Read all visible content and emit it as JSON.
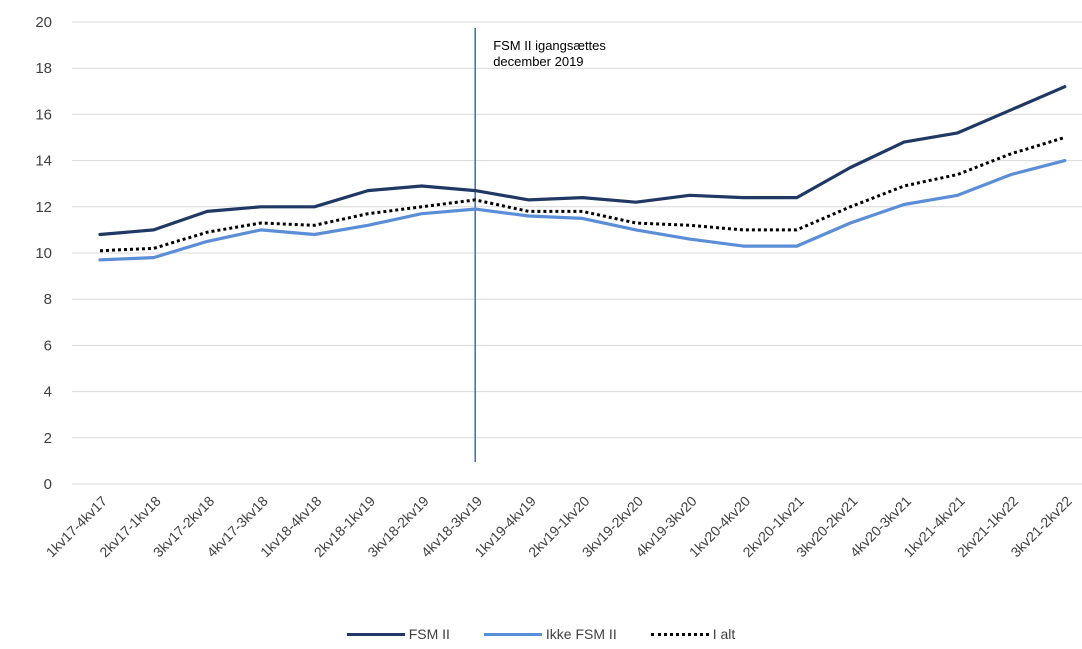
{
  "chart_data": {
    "type": "line",
    "title": "",
    "xlabel": "",
    "ylabel": "",
    "ylim": [
      0,
      20
    ],
    "yticks": [
      0,
      2,
      4,
      6,
      8,
      10,
      12,
      14,
      16,
      18,
      20
    ],
    "grid": true,
    "legend_position": "bottom",
    "categories": [
      "1kv17-4kv17",
      "2kv17-1kv18",
      "3kv17-2kv18",
      "4kv17-3kv18",
      "1kv18-4kv18",
      "2kv18-1kv19",
      "3kv18-2kv19",
      "4kv18-3kv19",
      "1kv19-4kv19",
      "2kv19-1kv20",
      "3kv19-2kv20",
      "4kv19-3kv20",
      "1kv20-4kv20",
      "2kv20-1kv21",
      "3kv20-2kv21",
      "4kv20-3kv21",
      "1kv21-4kv21",
      "2kv21-1kv22",
      "3kv21-2kv22"
    ],
    "series": [
      {
        "name": "FSM II",
        "color": "#1f3864",
        "style": "solid",
        "values": [
          10.8,
          11.0,
          11.8,
          12.0,
          12.0,
          12.7,
          12.9,
          12.7,
          12.3,
          12.4,
          12.2,
          12.5,
          12.4,
          12.4,
          13.7,
          14.8,
          15.2,
          16.2,
          17.2
        ]
      },
      {
        "name": "Ikke FSM II",
        "color": "#5b8ed6",
        "style": "solid",
        "values": [
          9.7,
          9.8,
          10.5,
          11.0,
          10.8,
          11.2,
          11.7,
          11.9,
          11.6,
          11.5,
          11.0,
          10.6,
          10.3,
          10.3,
          11.3,
          12.1,
          12.5,
          13.4,
          14.0
        ]
      },
      {
        "name": "I alt",
        "color": "#000000",
        "style": "dotted",
        "values": [
          10.1,
          10.2,
          10.9,
          11.3,
          11.2,
          11.7,
          12.0,
          12.3,
          11.8,
          11.8,
          11.3,
          11.2,
          11.0,
          11.0,
          12.0,
          12.9,
          13.4,
          14.3,
          15.0
        ]
      }
    ],
    "vertical_marker": {
      "category": "4kv18-3kv19",
      "color": "#2e74b5",
      "label_lines": [
        "FSM II igangsættes",
        "december 2019"
      ]
    }
  }
}
